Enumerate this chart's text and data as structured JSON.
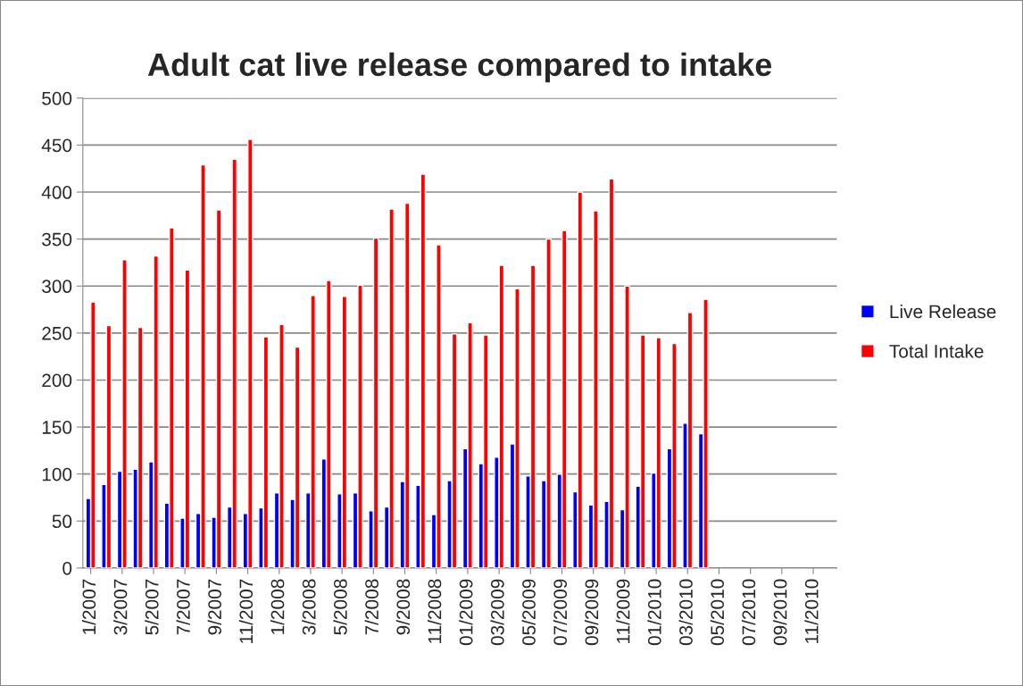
{
  "chart_data": {
    "type": "bar",
    "title": "Adult cat live release compared to intake",
    "categories": [
      "1/2007",
      null,
      "3/2007",
      null,
      "5/2007",
      null,
      "7/2007",
      null,
      "9/2007",
      null,
      "11/2007",
      null,
      "1/2008",
      null,
      "3/2008",
      null,
      "5/2008",
      null,
      "7/2008",
      null,
      "9/2008",
      null,
      "11/2008",
      null,
      "01/2009",
      null,
      "03/2009",
      null,
      "05/2009",
      null,
      "07/2009",
      null,
      "09/2009",
      null,
      "11/2009",
      null,
      "01/2010",
      null,
      "03/2010",
      null,
      "05/2010",
      null,
      "07/2010",
      null,
      "09/2010",
      null,
      "11/2010",
      null
    ],
    "series": [
      {
        "name": "Live Release",
        "color": "#0000ff",
        "values": [
          74,
          89,
          103,
          105,
          113,
          69,
          53,
          58,
          54,
          65,
          58,
          64,
          80,
          73,
          80,
          116,
          79,
          80,
          61,
          65,
          92,
          88,
          57,
          93,
          127,
          111,
          118,
          132,
          98,
          93,
          100,
          81,
          67,
          71,
          62,
          87,
          101,
          127,
          154,
          143,
          null,
          null,
          null,
          null,
          null,
          null,
          null,
          null
        ]
      },
      {
        "name": "Total Intake",
        "color": "#ff0000",
        "values": [
          283,
          258,
          328,
          256,
          332,
          362,
          317,
          429,
          381,
          435,
          456,
          246,
          259,
          235,
          290,
          306,
          289,
          301,
          351,
          382,
          388,
          419,
          344,
          249,
          261,
          248,
          322,
          297,
          322,
          350,
          359,
          400,
          380,
          414,
          300,
          248,
          245,
          239,
          272,
          286,
          null,
          null,
          null,
          null,
          null,
          null,
          null,
          null
        ]
      }
    ],
    "ylim": [
      0,
      500
    ],
    "yticks": [
      0,
      50,
      100,
      150,
      200,
      250,
      300,
      350,
      400,
      450,
      500
    ],
    "grid": "y",
    "legend": "right"
  }
}
